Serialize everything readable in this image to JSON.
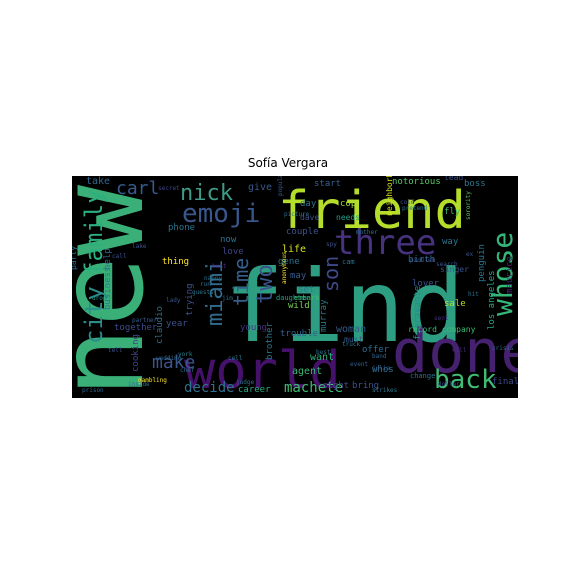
{
  "figure": {
    "title": "Sofía Vergara",
    "background_color": "#000000",
    "colormap": "viridis"
  },
  "words": [
    {
      "text": "new",
      "color": "#3aaf77"
    },
    {
      "text": "find",
      "color": "#2e9e83"
    },
    {
      "text": "friend",
      "color": "#b5dd2b"
    },
    {
      "text": "world",
      "color": "#45116a"
    },
    {
      "text": "done",
      "color": "#46216f"
    },
    {
      "text": "emoji",
      "color": "#39578c"
    },
    {
      "text": "nick",
      "color": "#3f9b87"
    },
    {
      "text": "city",
      "color": "#2a8e8b"
    },
    {
      "text": "family",
      "color": "#2ab07f"
    },
    {
      "text": "three",
      "color": "#46327e"
    },
    {
      "text": "whose",
      "color": "#35b779"
    },
    {
      "text": "back",
      "color": "#3fbc73"
    },
    {
      "text": "miami",
      "color": "#2f6c8e"
    },
    {
      "text": "two",
      "color": "#3a538b"
    },
    {
      "text": "time",
      "color": "#355f8d"
    },
    {
      "text": "son",
      "color": "#3e4989"
    },
    {
      "text": "carl",
      "color": "#365c8d"
    },
    {
      "text": "make",
      "color": "#3a548c"
    },
    {
      "text": "decide",
      "color": "#2d718e"
    },
    {
      "text": "machete",
      "color": "#3fbc73"
    },
    {
      "text": "take",
      "color": "#31688e"
    },
    {
      "text": "give",
      "color": "#38598c"
    },
    {
      "text": "day",
      "color": "#2c728e"
    },
    {
      "text": "start",
      "color": "#34608d"
    },
    {
      "text": "notorious",
      "color": "#56c667"
    },
    {
      "text": "lead",
      "color": "#3b528b"
    },
    {
      "text": "boss",
      "color": "#2a788e"
    },
    {
      "text": "cop",
      "color": "#a5db36"
    },
    {
      "text": "fly",
      "color": "#3dbc74"
    },
    {
      "text": "couple",
      "color": "#3b528b"
    },
    {
      "text": "way",
      "color": "#2c738e"
    },
    {
      "text": "birth",
      "color": "#31688e"
    },
    {
      "text": "life",
      "color": "#d8e219"
    },
    {
      "text": "gene",
      "color": "#2c728e"
    },
    {
      "text": "may",
      "color": "#365c8d"
    },
    {
      "text": "set",
      "color": "#2a788e"
    },
    {
      "text": "wild",
      "color": "#7ad151"
    },
    {
      "text": "phone",
      "color": "#2b748e"
    },
    {
      "text": "thing",
      "color": "#fde725"
    },
    {
      "text": "now",
      "color": "#2c728e"
    },
    {
      "text": "love",
      "color": "#414487"
    },
    {
      "text": "help",
      "color": "#31688e"
    },
    {
      "text": "party",
      "color": "#2d718e"
    },
    {
      "text": "business",
      "color": "#2a788e"
    },
    {
      "text": "claudio",
      "color": "#2f6c8e"
    },
    {
      "text": "trying",
      "color": "#3b528b"
    },
    {
      "text": "together",
      "color": "#3e4c8a"
    },
    {
      "text": "cooking",
      "color": "#3f4788"
    },
    {
      "text": "year",
      "color": "#3b528b"
    },
    {
      "text": "young",
      "color": "#46327e"
    },
    {
      "text": "brother",
      "color": "#2c728e"
    },
    {
      "text": "murray",
      "color": "#29798e"
    },
    {
      "text": "woman",
      "color": "#365c8d"
    },
    {
      "text": "offer",
      "color": "#2f6c8e"
    },
    {
      "text": "fioravante",
      "color": "#23888e"
    },
    {
      "text": "whos",
      "color": "#2c728e"
    },
    {
      "text": "lover",
      "color": "#3a548c"
    },
    {
      "text": "los angeles",
      "color": "#22a884"
    },
    {
      "text": "maurice",
      "color": "#482374"
    },
    {
      "text": "penguin",
      "color": "#2b748e"
    },
    {
      "text": "sale",
      "color": "#b5de2b"
    },
    {
      "text": "want",
      "color": "#2ab07f"
    },
    {
      "text": "agent",
      "color": "#3aba76"
    },
    {
      "text": "right",
      "color": "#3f4889"
    },
    {
      "text": "bring",
      "color": "#3b528b"
    },
    {
      "text": "career",
      "color": "#26ad81"
    },
    {
      "text": "record company",
      "color": "#3dbc74"
    },
    {
      "text": "singer",
      "color": "#3b528b"
    },
    {
      "text": "final",
      "color": "#3e4989"
    },
    {
      "text": "trouble",
      "color": "#34608d"
    },
    {
      "text": "daughter",
      "color": "#1f9e89"
    },
    {
      "text": "dave",
      "color": "#3b528b"
    },
    {
      "text": "cam",
      "color": "#2c728e"
    },
    {
      "text": "problem",
      "color": "#3b528b"
    },
    {
      "text": "search",
      "color": "#3a548c"
    },
    {
      "text": "embark",
      "color": "#3fbc73"
    },
    {
      "text": "secret",
      "color": "#414487"
    },
    {
      "text": "change",
      "color": "#2c728e"
    },
    {
      "text": "julia",
      "color": "#38598c"
    },
    {
      "text": "needs",
      "color": "#1fa088"
    },
    {
      "text": "picture",
      "color": "#2d708e"
    },
    {
      "text": "neighborhood",
      "color": "#d0e11c"
    },
    {
      "text": "gambling",
      "color": "#fde725"
    },
    {
      "text": "inside",
      "color": "#2c728e"
    },
    {
      "text": "drop",
      "color": "#21918c"
    },
    {
      "text": "york",
      "color": "#25838e"
    },
    {
      "text": "call",
      "color": "#3b528b"
    },
    {
      "text": "best",
      "color": "#2c728e"
    },
    {
      "text": "dollar",
      "color": "#3e4a89"
    },
    {
      "text": "prison",
      "color": "#31688e"
    },
    {
      "text": "strikes",
      "color": "#2a788e"
    },
    {
      "text": "hunt",
      "color": "#46327e"
    },
    {
      "text": "run",
      "color": "#2c728e"
    },
    {
      "text": "must",
      "color": "#38598c"
    },
    {
      "text": "event",
      "color": "#365c8d"
    },
    {
      "text": "chef",
      "color": "#2c728e"
    },
    {
      "text": "cell",
      "color": "#2a788e"
    },
    {
      "text": "band",
      "color": "#31688e"
    },
    {
      "text": "tell",
      "color": "#3b528b"
    },
    {
      "text": "sent",
      "color": "#46327e"
    },
    {
      "text": "jim",
      "color": "#2c728e"
    },
    {
      "text": "lake",
      "color": "#3b528b"
    },
    {
      "text": "truck",
      "color": "#2a788e"
    },
    {
      "text": "anonymous",
      "color": "#fde725"
    },
    {
      "text": "sorority",
      "color": "#5ec962"
    },
    {
      "text": "popular",
      "color": "#38598c"
    },
    {
      "text": "judge",
      "color": "#2c728e"
    },
    {
      "text": "ex",
      "color": "#3b528b"
    },
    {
      "text": "guests",
      "color": "#2a788e"
    },
    {
      "text": "lady",
      "color": "#3b528b"
    },
    {
      "text": "hit",
      "color": "#2c728e"
    },
    {
      "text": "kill",
      "color": "#46327e"
    },
    {
      "text": "wedding",
      "color": "#31688e"
    },
    {
      "text": "nanny",
      "color": "#2c728e"
    },
    {
      "text": "cold",
      "color": "#3b528b"
    },
    {
      "text": "pretend",
      "color": "#2a788e"
    },
    {
      "text": "crisis",
      "color": "#31688e"
    },
    {
      "text": "spy",
      "color": "#3b528b"
    },
    {
      "text": "mother",
      "color": "#2c728e"
    },
    {
      "text": "partner",
      "color": "#365c8d"
    }
  ]
}
